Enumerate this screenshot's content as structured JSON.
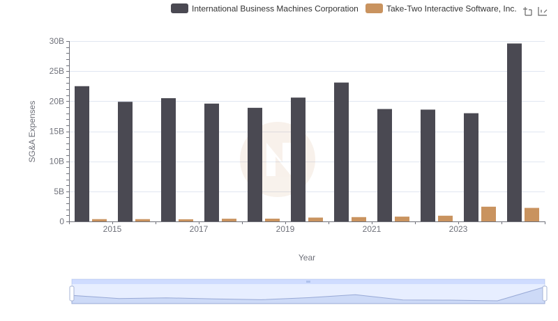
{
  "chart_data": {
    "type": "bar",
    "xlabel": "Year",
    "ylabel": "SG&A Expenses",
    "x": [
      2014,
      2015,
      2016,
      2017,
      2018,
      2019,
      2020,
      2021,
      2022,
      2023,
      2024
    ],
    "x_tick_labels": [
      "2015",
      "2017",
      "2019",
      "2021",
      "2023"
    ],
    "y_tick_labels": [
      "0",
      "5B",
      "10B",
      "15B",
      "20B",
      "25B",
      "30B"
    ],
    "ylim": [
      0,
      30
    ],
    "y_unit": "billions",
    "grid": true,
    "legend_position": "top-right",
    "series": [
      {
        "name": "International Business Machines Corporation",
        "color": "#4a4952",
        "values": [
          22.5,
          19.9,
          20.5,
          19.6,
          18.9,
          20.6,
          23.1,
          18.7,
          18.6,
          18.0,
          29.6
        ]
      },
      {
        "name": "Take-Two Interactive Software, Inc.",
        "color": "#c9935f",
        "values": [
          0.38,
          0.38,
          0.36,
          0.45,
          0.46,
          0.64,
          0.72,
          0.8,
          0.95,
          2.45,
          2.25
        ]
      }
    ]
  }
}
